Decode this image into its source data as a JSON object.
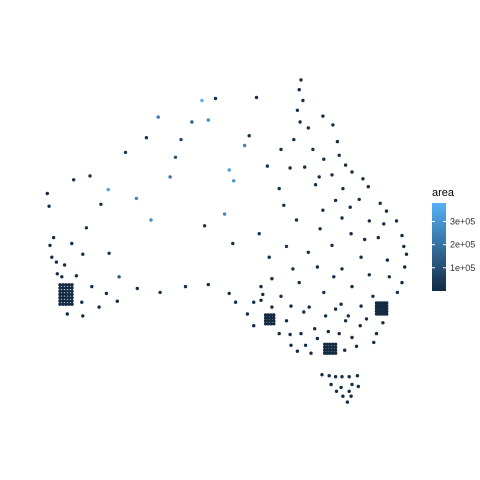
{
  "chart_data": {
    "type": "scatter",
    "title": "",
    "xlabel": "",
    "ylabel": "",
    "legend": {
      "title": "area",
      "placement": "right",
      "range": [
        0,
        380000
      ],
      "ticks": [
        {
          "value": 100000,
          "label": "1e+05"
        },
        {
          "value": 200000,
          "label": "2e+05"
        },
        {
          "value": 300000,
          "label": "3e+05"
        }
      ],
      "color_low": "#132B43",
      "color_high": "#56B1F7"
    },
    "grid": false,
    "axes_visible": false,
    "xlim": [
      112,
      154
    ],
    "ylim": [
      -44,
      -10
    ],
    "point_color": "#132B43",
    "clusters": [
      {
        "lon": [
          115.3,
          116.8
        ],
        "lat": [
          -33.4,
          -31.4
        ],
        "step": 0.33
      },
      {
        "lon": [
          150.1,
          151.4
        ],
        "lat": [
          -34.4,
          -33.1
        ],
        "step": 0.28
      },
      {
        "lon": [
          144.4,
          145.8
        ],
        "lat": [
          -38.4,
          -37.3
        ],
        "step": 0.3
      },
      {
        "lon": [
          137.9,
          139.0
        ],
        "lat": [
          -35.4,
          -34.3
        ],
        "step": 0.3
      }
    ],
    "points": [
      [
        141.8,
        -10.5,
        8000
      ],
      [
        141.6,
        -11.5,
        9000
      ],
      [
        142.0,
        -12.6,
        12000
      ],
      [
        141.4,
        -13.6,
        15000
      ],
      [
        141.7,
        -14.8,
        11000
      ],
      [
        142.6,
        -15.4,
        9000
      ],
      [
        144.2,
        -14.2,
        10000
      ],
      [
        145.3,
        -15.1,
        8000
      ],
      [
        145.8,
        -16.8,
        7000
      ],
      [
        146.0,
        -18.2,
        9000
      ],
      [
        146.7,
        -19.2,
        6000
      ],
      [
        147.4,
        -19.9,
        11000
      ],
      [
        148.6,
        -20.6,
        8000
      ],
      [
        149.2,
        -21.4,
        10000
      ],
      [
        150.5,
        -23.1,
        7000
      ],
      [
        151.2,
        -23.9,
        9000
      ],
      [
        152.3,
        -24.9,
        6000
      ],
      [
        152.9,
        -26.4,
        5000
      ],
      [
        153.1,
        -27.5,
        4000
      ],
      [
        153.4,
        -28.3,
        5000
      ],
      [
        153.2,
        -29.6,
        6000
      ],
      [
        152.9,
        -31.2,
        5000
      ],
      [
        152.4,
        -32.2,
        6000
      ],
      [
        150.8,
        -35.3,
        7000
      ],
      [
        150.1,
        -36.4,
        8000
      ],
      [
        149.8,
        -37.3,
        9000
      ],
      [
        143.1,
        -17.6,
        14000
      ],
      [
        144.3,
        -18.6,
        12000
      ],
      [
        145.2,
        -20.2,
        10000
      ],
      [
        143.4,
        -21.2,
        16000
      ],
      [
        146.4,
        -21.6,
        13000
      ],
      [
        148.2,
        -22.7,
        11000
      ],
      [
        144.2,
        -23.8,
        18000
      ],
      [
        146.3,
        -24.6,
        15000
      ],
      [
        149.3,
        -24.9,
        9000
      ],
      [
        147.3,
        -26.2,
        12000
      ],
      [
        150.3,
        -26.6,
        8000
      ],
      [
        145.2,
        -27.4,
        16000
      ],
      [
        148.4,
        -28.6,
        11000
      ],
      [
        151.3,
        -28.9,
        7000
      ],
      [
        146.3,
        -29.8,
        14000
      ],
      [
        149.3,
        -30.4,
        10000
      ],
      [
        151.5,
        -30.6,
        6000
      ],
      [
        147.4,
        -31.6,
        12000
      ],
      [
        144.3,
        -32.2,
        18000
      ],
      [
        149.7,
        -32.6,
        8000
      ],
      [
        146.2,
        -33.4,
        9000
      ],
      [
        148.4,
        -33.6,
        7000
      ],
      [
        142.1,
        -34.2,
        15000
      ],
      [
        144.5,
        -34.6,
        10000
      ],
      [
        146.7,
        -35.1,
        8000
      ],
      [
        148.3,
        -35.6,
        6000
      ],
      [
        143.3,
        -35.9,
        9000
      ],
      [
        141.8,
        -36.4,
        10000
      ],
      [
        147.4,
        -36.8,
        7000
      ],
      [
        142.3,
        -37.6,
        8000
      ],
      [
        146.6,
        -38.1,
        6000
      ],
      [
        142.9,
        -38.4,
        7000
      ],
      [
        141.4,
        -38.2,
        6000
      ],
      [
        147.9,
        -37.7,
        5000
      ],
      [
        139.6,
        -32.6,
        14000
      ],
      [
        140.7,
        -33.6,
        11000
      ],
      [
        139.4,
        -36.4,
        9000
      ],
      [
        140.7,
        -37.6,
        8000
      ],
      [
        136.6,
        -33.2,
        12000
      ],
      [
        135.9,
        -34.4,
        10000
      ],
      [
        137.4,
        -33.0,
        9000
      ],
      [
        133.9,
        -32.3,
        16000
      ],
      [
        134.6,
        -33.2,
        12000
      ],
      [
        131.6,
        -31.4,
        15000
      ],
      [
        129.1,
        -31.6,
        14000
      ],
      [
        128.0,
        -18.4,
        120000
      ],
      [
        130.9,
        -12.6,
        380000
      ],
      [
        131.6,
        -14.6,
        280000
      ],
      [
        132.4,
        -12.4,
        20000
      ],
      [
        133.9,
        -19.7,
        330000
      ],
      [
        135.6,
        -17.2,
        240000
      ],
      [
        134.4,
        -20.8,
        300000
      ],
      [
        133.4,
        -24.2,
        260000
      ],
      [
        131.2,
        -25.4,
        22000
      ],
      [
        134.3,
        -27.2,
        18000
      ],
      [
        137.2,
        -26.2,
        24000
      ],
      [
        136.1,
        -16.2,
        14000
      ],
      [
        136.9,
        -12.3,
        10000
      ],
      [
        129.8,
        -14.8,
        150000
      ],
      [
        126.1,
        -14.3,
        230000
      ],
      [
        128.6,
        -16.6,
        100000
      ],
      [
        124.8,
        -16.4,
        30000
      ],
      [
        127.4,
        -20.4,
        200000
      ],
      [
        122.5,
        -17.9,
        40000
      ],
      [
        120.6,
        -21.7,
        340000
      ],
      [
        118.6,
        -20.3,
        20000
      ],
      [
        116.8,
        -20.7,
        15000
      ],
      [
        113.9,
        -22.1,
        12000
      ],
      [
        114.1,
        -23.4,
        14000
      ],
      [
        123.7,
        -22.6,
        260000
      ],
      [
        125.3,
        -24.8,
        280000
      ],
      [
        119.8,
        -23.2,
        22000
      ],
      [
        118.2,
        -25.6,
        20000
      ],
      [
        114.6,
        -26.6,
        12000
      ],
      [
        114.4,
        -28.6,
        11000
      ],
      [
        115.0,
        -30.3,
        9000
      ],
      [
        121.8,
        -30.6,
        120000
      ],
      [
        123.8,
        -31.8,
        24000
      ],
      [
        126.3,
        -32.2,
        18000
      ],
      [
        120.7,
        -28.2,
        30000
      ],
      [
        116.6,
        -27.2,
        16000
      ],
      [
        117.8,
        -28.3,
        20000
      ],
      [
        118.8,
        -31.6,
        14000
      ],
      [
        121.6,
        -33.1,
        9000
      ],
      [
        119.6,
        -33.7,
        10000
      ],
      [
        117.8,
        -34.6,
        8000
      ],
      [
        116.1,
        -34.4,
        9000
      ],
      [
        117.7,
        -33.2,
        11000
      ],
      [
        120.4,
        -32.3,
        12000
      ],
      [
        114.9,
        -29.1,
        10000
      ],
      [
        115.8,
        -29.4,
        9000
      ],
      [
        117.1,
        -30.5,
        11000
      ],
      [
        115.5,
        -30.6,
        9000
      ],
      [
        114.2,
        -27.4,
        10000
      ],
      [
        138.1,
        -19.3,
        16000
      ],
      [
        140.6,
        -19.5,
        12000
      ],
      [
        139.4,
        -21.6,
        14000
      ],
      [
        139.9,
        -23.3,
        18000
      ],
      [
        141.3,
        -24.8,
        15000
      ],
      [
        140.2,
        -27.5,
        20000
      ],
      [
        138.3,
        -28.6,
        16000
      ],
      [
        140.9,
        -29.8,
        12000
      ],
      [
        138.6,
        -30.8,
        14000
      ],
      [
        141.6,
        -31.2,
        11000
      ],
      [
        137.4,
        -31.6,
        9000
      ],
      [
        143.9,
        -25.7,
        13000
      ],
      [
        142.6,
        -28.1,
        12000
      ],
      [
        141.0,
        -16.6,
        10000
      ],
      [
        139.6,
        -17.6,
        9000
      ],
      [
        142.2,
        -19.4,
        12000
      ],
      [
        143.8,
        -20.4,
        11000
      ],
      [
        145.6,
        -22.8,
        9000
      ],
      [
        147.2,
        -23.5,
        8000
      ],
      [
        148.8,
        -26.8,
        7000
      ],
      [
        150.9,
        -25.2,
        6000
      ],
      [
        143.6,
        -29.6,
        10000
      ],
      [
        145.4,
        -30.6,
        9000
      ],
      [
        147.0,
        -34.6,
        7000
      ],
      [
        149.0,
        -34.9,
        6000
      ],
      [
        142.7,
        -33.7,
        8000
      ],
      [
        146.0,
        -36.4,
        7000
      ],
      [
        144.8,
        -36.2,
        6000
      ],
      [
        143.6,
        -36.9,
        7000
      ],
      [
        145.6,
        -33.9,
        8000
      ],
      [
        138.6,
        -33.7,
        7000
      ],
      [
        137.6,
        -32.4,
        8000
      ],
      [
        136.6,
        -35.6,
        6000
      ],
      [
        140.2,
        -35.1,
        7000
      ],
      [
        140.6,
        -36.5,
        6000
      ],
      [
        144.1,
        -40.6,
        9000
      ],
      [
        144.9,
        -40.7,
        8000
      ],
      [
        145.6,
        -40.8,
        7000
      ],
      [
        146.3,
        -40.8,
        7000
      ],
      [
        147.1,
        -40.8,
        6000
      ],
      [
        148.0,
        -40.7,
        7000
      ],
      [
        145.1,
        -41.6,
        8000
      ],
      [
        146.2,
        -41.9,
        7000
      ],
      [
        147.4,
        -41.6,
        6000
      ],
      [
        148.1,
        -41.8,
        5000
      ],
      [
        146.4,
        -42.8,
        7000
      ],
      [
        147.3,
        -42.8,
        6000
      ],
      [
        146.9,
        -43.4,
        5000
      ],
      [
        145.7,
        -42.3,
        6000
      ],
      [
        147.1,
        -42.3,
        5000
      ]
    ]
  }
}
